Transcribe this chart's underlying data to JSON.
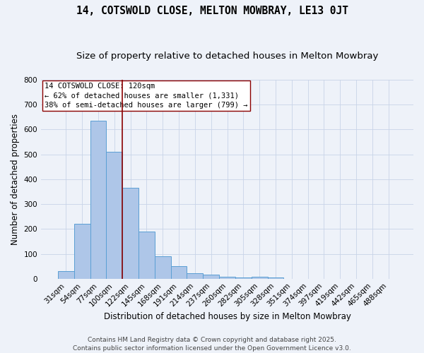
{
  "title": "14, COTSWOLD CLOSE, MELTON MOWBRAY, LE13 0JT",
  "subtitle": "Size of property relative to detached houses in Melton Mowbray",
  "xlabel": "Distribution of detached houses by size in Melton Mowbray",
  "ylabel": "Number of detached properties",
  "bar_labels": [
    "31sqm",
    "54sqm",
    "77sqm",
    "100sqm",
    "122sqm",
    "145sqm",
    "168sqm",
    "191sqm",
    "214sqm",
    "237sqm",
    "260sqm",
    "282sqm",
    "305sqm",
    "328sqm",
    "351sqm",
    "374sqm",
    "397sqm",
    "419sqm",
    "442sqm",
    "465sqm",
    "488sqm"
  ],
  "bar_values": [
    30,
    220,
    635,
    510,
    365,
    190,
    90,
    50,
    22,
    16,
    8,
    5,
    9,
    5,
    0,
    0,
    0,
    0,
    0,
    0,
    0
  ],
  "bar_color": "#aec6e8",
  "bar_edge_color": "#5a9fd4",
  "annotation_line1": "14 COTSWOLD CLOSE: 120sqm",
  "annotation_line2": "← 62% of detached houses are smaller (1,331)",
  "annotation_line3": "38% of semi-detached houses are larger (799) →",
  "vline_color": "#8b0000",
  "annotation_box_color": "#ffffff",
  "annotation_box_edge": "#8b0000",
  "background_color": "#eef2f9",
  "grid_color": "#c8d4e8",
  "ylim": [
    0,
    800
  ],
  "yticks": [
    0,
    100,
    200,
    300,
    400,
    500,
    600,
    700,
    800
  ],
  "footer_line1": "Contains HM Land Registry data © Crown copyright and database right 2025.",
  "footer_line2": "Contains public sector information licensed under the Open Government Licence v3.0.",
  "title_fontsize": 10.5,
  "subtitle_fontsize": 9.5,
  "axis_label_fontsize": 8.5,
  "tick_fontsize": 7.5,
  "annotation_fontsize": 7.5,
  "footer_fontsize": 6.5
}
